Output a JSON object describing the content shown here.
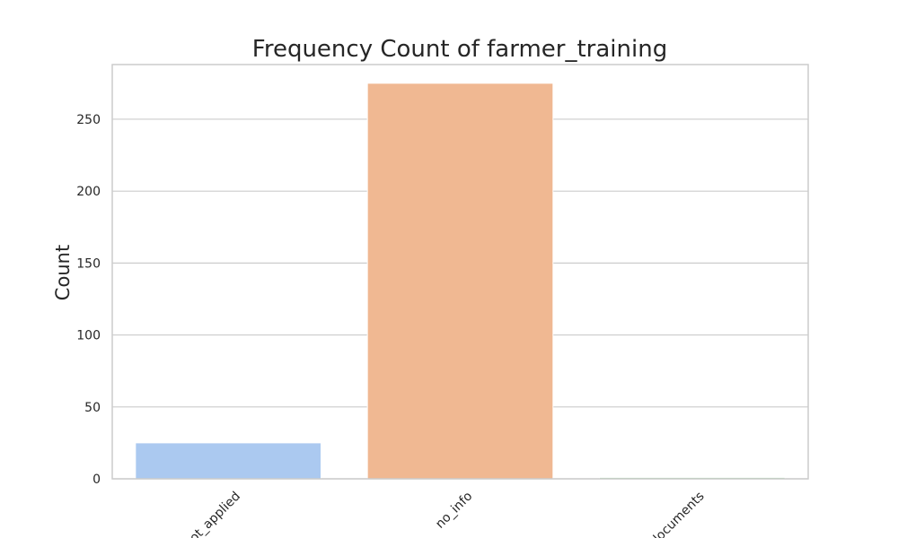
{
  "chart_data": {
    "type": "bar",
    "title": "Frequency Count of farmer_training",
    "xlabel": "",
    "ylabel": "Count",
    "categories": [
      "not_applied",
      "no_info",
      "documents"
    ],
    "values": [
      25,
      275,
      1
    ],
    "colors": [
      "#abc9f0",
      "#f0b892",
      "#b4dbb6"
    ],
    "ylim": [
      0,
      288
    ],
    "yticks": [
      0,
      50,
      100,
      150,
      200,
      250
    ],
    "grid": true,
    "legend": "none"
  }
}
